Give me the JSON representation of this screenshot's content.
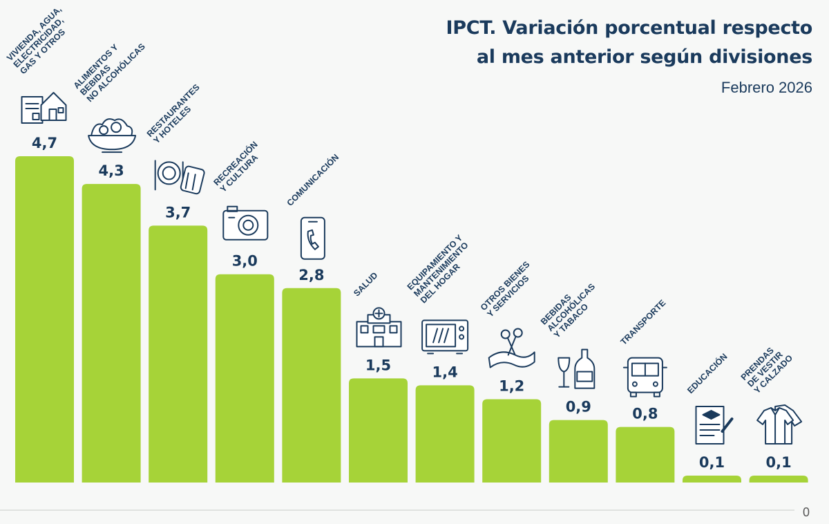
{
  "chart_data": {
    "type": "bar",
    "title_lines": [
      "IPCT. Variación porcentual respecto",
      "al mes anterior según divisiones"
    ],
    "subtitle": "Febrero 2026",
    "categories": [
      [
        "VIVIENDA, AGUA,",
        "ELECTRICIDAD,",
        "GAS Y OTROS"
      ],
      [
        "ALIMENTOS Y",
        "BEBIDAS",
        "NO ALCOHÓLICAS"
      ],
      [
        "RESTAURANTES",
        "Y HOTELES"
      ],
      [
        "RECREACIÓN",
        "Y CULTURA"
      ],
      [
        "COMUNICACIÓN"
      ],
      [
        "SALUD"
      ],
      [
        "EQUIPAMIENTO Y",
        "MANTENIMIENTO",
        "DEL HOGAR"
      ],
      [
        "OTROS BIENES",
        "Y SERVICIOS"
      ],
      [
        "BEBIDAS",
        "ALCOHÓLICAS",
        "Y TABACO"
      ],
      [
        "TRANSPORTE"
      ],
      [
        "EDUCACIÓN"
      ],
      [
        "PRENDAS",
        "DE VESTIR",
        "Y CALZADO"
      ]
    ],
    "values": [
      4.7,
      4.3,
      3.7,
      3.0,
      2.8,
      1.5,
      1.4,
      1.2,
      0.9,
      0.8,
      0.1,
      0.1
    ],
    "value_labels": [
      "4,7",
      "4,3",
      "3,7",
      "3,0",
      "2,8",
      "1,5",
      "1,4",
      "1,2",
      "0,9",
      "0,8",
      "0,1",
      "0,1"
    ],
    "icons": [
      "house-document-icon",
      "food-bowl-icon",
      "plate-cutlery-suitcase-icon",
      "camera-icon",
      "smartphone-icon",
      "hospital-icon",
      "microwave-icon",
      "scissors-ribbon-icon",
      "wine-bottle-glass-icon",
      "bus-icon",
      "graduation-document-icon",
      "clothing-icon"
    ],
    "axis_zero_label": "0",
    "ylim": [
      0,
      4.7
    ],
    "colors": {
      "bar": "#a6d338",
      "text": "#1a3a5c",
      "background": "#f7f8f7",
      "axis": "#c8ccc8"
    }
  }
}
